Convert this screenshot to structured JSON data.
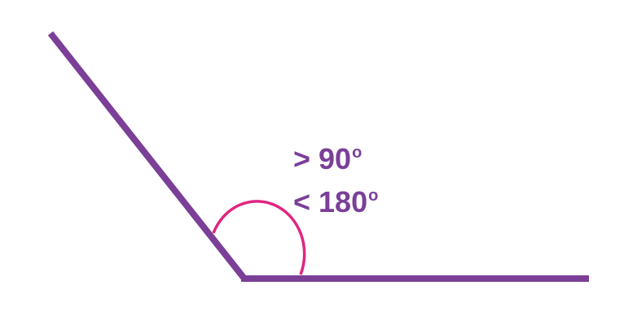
{
  "diagram": {
    "label_lower_bound": "> 90",
    "label_upper_bound": "< 180",
    "degree_symbol": "o"
  },
  "colors": {
    "rays": "#7b3f98",
    "arc": "#e0267f",
    "label": "#7b3f98",
    "background": "#ffffff"
  }
}
